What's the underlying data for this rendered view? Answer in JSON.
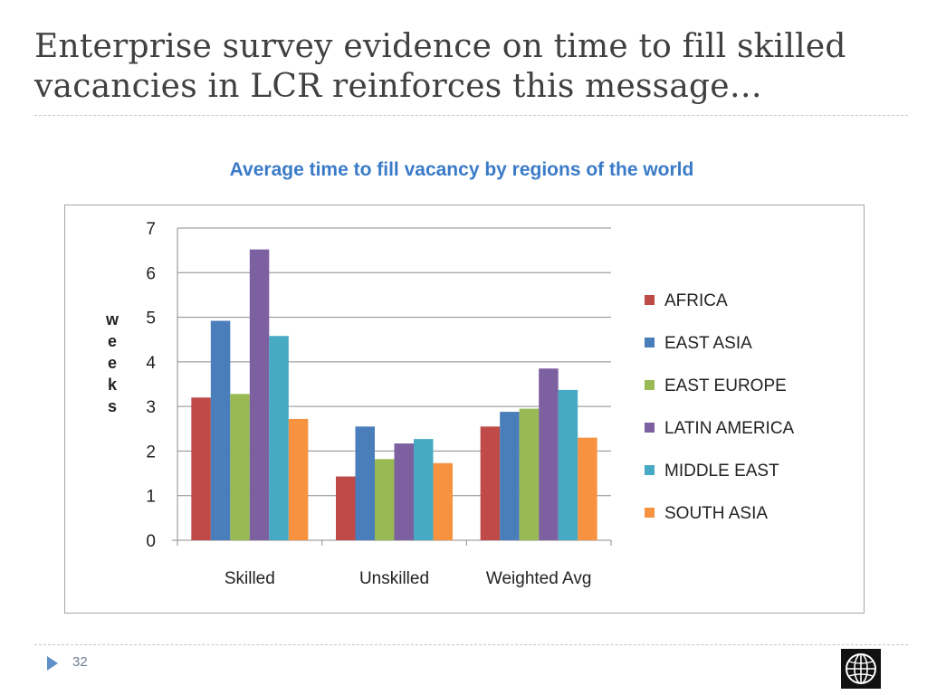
{
  "slide": {
    "title_line1": "Enterprise survey evidence on time to fill skilled",
    "title_line2": "vacancies in LCR reinforces this message…",
    "page_number": "32",
    "heading_color": "#3a7bc8",
    "logo_icon": "world-bank-globe-icon"
  },
  "chart_data": {
    "type": "bar",
    "title": "Average time to fill vacancy by regions of the world",
    "ylabel": "weeks",
    "xlabel": "",
    "categories": [
      "Skilled",
      "Unskilled",
      "Weighted Avg"
    ],
    "ylim": [
      0,
      7
    ],
    "yticks": [
      0,
      1,
      2,
      3,
      4,
      5,
      6,
      7
    ],
    "grid": true,
    "legend_position": "right",
    "series": [
      {
        "name": "AFRICA",
        "color": "#be4b48",
        "values": [
          3.2,
          1.43,
          2.55
        ]
      },
      {
        "name": "EAST ASIA",
        "color": "#4a7ebb",
        "values": [
          4.92,
          2.55,
          2.88
        ]
      },
      {
        "name": "EAST EUROPE",
        "color": "#98b954",
        "values": [
          3.28,
          1.82,
          2.95
        ]
      },
      {
        "name": "LATIN AMERICA",
        "color": "#7d60a0",
        "values": [
          6.52,
          2.17,
          3.85
        ]
      },
      {
        "name": "MIDDLE EAST",
        "color": "#46aac5",
        "values": [
          4.58,
          2.27,
          3.37
        ]
      },
      {
        "name": "SOUTH ASIA",
        "color": "#f69240",
        "values": [
          2.72,
          1.73,
          2.3
        ]
      }
    ]
  }
}
